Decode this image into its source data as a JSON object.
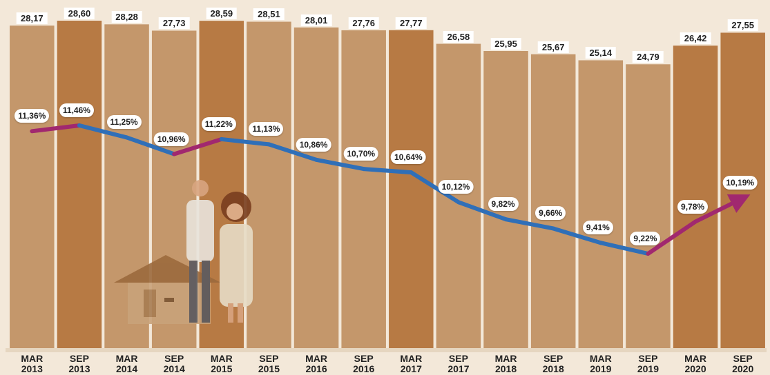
{
  "chart_data": {
    "type": "bar",
    "categories": [
      "MAR 2013",
      "SEP 2013",
      "MAR 2014",
      "SEP 2014",
      "MAR 2015",
      "SEP 2015",
      "MAR 2016",
      "SEP 2016",
      "MAR 2017",
      "SEP 2017",
      "MAR 2018",
      "SEP 2018",
      "MAR 2019",
      "SEP 2019",
      "MAR 2020",
      "SEP 2020"
    ],
    "values": [
      28.17,
      28.6,
      28.28,
      27.73,
      28.59,
      28.51,
      28.01,
      27.76,
      27.77,
      26.58,
      25.95,
      25.67,
      25.14,
      24.79,
      26.42,
      27.55
    ],
    "value_labels": [
      "28,17",
      "28,60",
      "28,28",
      "27,73",
      "28,59",
      "28,51",
      "28,01",
      "27,76",
      "27,77",
      "26,58",
      "25,95",
      "25,67",
      "25,14",
      "24,79",
      "26,42",
      "27,55"
    ],
    "colors": [
      "#c4976b",
      "#b77a44",
      "#c4976b",
      "#c4976b",
      "#b77a44",
      "#c4976b",
      "#c4976b",
      "#c4976b",
      "#b77a44",
      "#c4976b",
      "#c4976b",
      "#c4976b",
      "#c4976b",
      "#c4976b",
      "#b77a44",
      "#b77a44"
    ],
    "line": {
      "values": [
        11.36,
        11.46,
        11.25,
        10.96,
        11.22,
        11.13,
        10.86,
        10.7,
        10.64,
        10.12,
        9.82,
        9.66,
        9.41,
        9.22,
        9.78,
        10.19
      ],
      "value_labels": [
        "11,36%",
        "11,46%",
        "11,25%",
        "10,96%",
        "11,22%",
        "11,13%",
        "10,86%",
        "10,70%",
        "10,64%",
        "10,12%",
        "9,82%",
        "9,66%",
        "9,41%",
        "9,22%",
        "9,78%",
        "10,19%"
      ],
      "color": "#2f6fb8",
      "rise_color": "#a1286f"
    }
  }
}
